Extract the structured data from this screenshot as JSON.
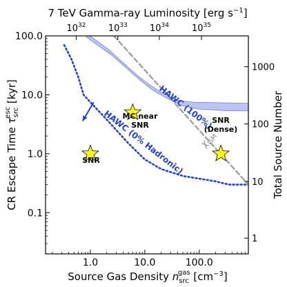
{
  "chart_data": {
    "type": "line",
    "xaxis": {
      "label": "Source Gas Density",
      "symbol_main": "n",
      "symbol_sup": "gas",
      "symbol_sub": "src",
      "unit_main": "[cm",
      "unit_sup": "−3",
      "unit_end": "]",
      "scale": "log",
      "lim": [
        0.15,
        800
      ],
      "ticks": [
        1,
        10,
        100
      ],
      "tick_labels": [
        "1.0",
        "10.0",
        "100.0"
      ]
    },
    "yaxis": {
      "label": "CR Escape Time",
      "symbol_main": "τ",
      "symbol_sup": "esc",
      "symbol_sub": "src",
      "unit": "[kyr]",
      "scale": "log",
      "lim": [
        0.02,
        100
      ],
      "ticks": [
        0.1,
        1,
        10,
        100
      ],
      "tick_labels": [
        "0.1",
        "1.0",
        "10.0",
        "100.0"
      ]
    },
    "top_axis": {
      "label": "7 TeV Gamma-ray Luminosity [erg s",
      "label_sup": "−1",
      "label_end": "]",
      "scale": "log",
      "ticks": [
        {
          "x": 0.55,
          "base": "10",
          "exp": "32"
        },
        {
          "x": 3.2,
          "base": "10",
          "exp": "33"
        },
        {
          "x": 18.5,
          "base": "10",
          "exp": "34"
        },
        {
          "x": 110,
          "base": "10",
          "exp": "35"
        }
      ]
    },
    "right_axis": {
      "label": "Total Source Number",
      "ticks": [
        {
          "y": 0.037,
          "label": "1"
        },
        {
          "y": 0.34,
          "label": "10"
        },
        {
          "y": 3.2,
          "label": "100"
        },
        {
          "y": 30,
          "label": "1000"
        }
      ]
    },
    "series": [
      {
        "name": "HAWC (100%)",
        "style": "band",
        "color": "#6b7fe0",
        "upper": [
          [
            0.85,
            110
          ],
          [
            2.1,
            60
          ],
          [
            4,
            35
          ],
          [
            7,
            22
          ],
          [
            12,
            15
          ],
          [
            20,
            11
          ],
          [
            40,
            8
          ],
          [
            80,
            7.5
          ],
          [
            300,
            7.3
          ],
          [
            800,
            7.2
          ]
        ],
        "lower": [
          [
            0.85,
            95
          ],
          [
            2.4,
            48
          ],
          [
            4.5,
            29
          ],
          [
            8,
            18
          ],
          [
            14,
            12
          ],
          [
            25,
            8.8
          ],
          [
            50,
            6.5
          ],
          [
            100,
            5.7
          ],
          [
            300,
            5.4
          ],
          [
            800,
            5.4
          ]
        ]
      },
      {
        "name": "HAWC (0% Hadronic)",
        "style": "dotted",
        "color": "#1f3fd9",
        "points": [
          [
            0.33,
            70
          ],
          [
            0.45,
            40
          ],
          [
            0.6,
            20
          ],
          [
            0.75,
            10
          ],
          [
            1.0,
            7.5
          ],
          [
            2,
            3.8
          ],
          [
            5,
            1.5
          ],
          [
            10,
            0.8
          ],
          [
            20,
            0.55
          ],
          [
            50,
            0.42
          ],
          [
            200,
            0.34
          ],
          [
            350,
            0.3
          ],
          [
            800,
            0.3
          ]
        ]
      },
      {
        "name": "χ_ISM",
        "style": "dashed",
        "color": "#999999",
        "points": [
          [
            2.7,
            100
          ],
          [
            800,
            0.3
          ]
        ]
      }
    ],
    "markers": [
      {
        "name": "SNR",
        "x": 1.0,
        "y": 1.0,
        "label": "SNR"
      },
      {
        "name": "MC near SNR",
        "x": 6.0,
        "y": 5.0,
        "label_line1": "MC near",
        "label_line2": "SNR"
      },
      {
        "name": "SNR (Dense)",
        "x": 250,
        "y": 1.0,
        "label_line1": "SNR",
        "label_line2": "(Dense)"
      }
    ],
    "annotations": {
      "hawc100": "HAWC (100%)",
      "hawc0": "HAWC (0% Hadronic)",
      "chi_main": "χ",
      "chi_sub": "ISM"
    },
    "marker_color": "#ffff00",
    "grid": false,
    "legend": "none"
  }
}
